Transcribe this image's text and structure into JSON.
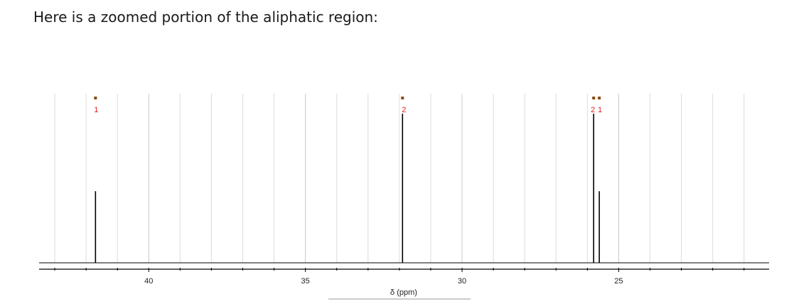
{
  "heading": "Here is a zoomed portion of the aliphatic region:",
  "chart_data": {
    "type": "nmr_spectrum",
    "xlabel": "δ (ppm)",
    "x_reversed": true,
    "xlim": [
      43.5,
      20.2
    ],
    "ylim": [
      0,
      1.0
    ],
    "ticks": [
      {
        "value": 40,
        "label": "40"
      },
      {
        "value": 35,
        "label": "35"
      },
      {
        "value": 30,
        "label": "30"
      },
      {
        "value": 25,
        "label": "25"
      }
    ],
    "peaks": [
      {
        "shift": 41.7,
        "height": 0.48,
        "label": "1"
      },
      {
        "shift": 31.9,
        "height": 1.0,
        "label": "2"
      },
      {
        "shift": 25.8,
        "height": 1.0,
        "label": "2"
      },
      {
        "shift": 25.62,
        "height": 0.48,
        "label": "1"
      }
    ],
    "grid": true,
    "colors": {
      "peak": "#000000",
      "peak_label": "#e02020",
      "marker": "#8b4a10",
      "grid": "#dcdcdc",
      "axis": "#000000"
    }
  }
}
